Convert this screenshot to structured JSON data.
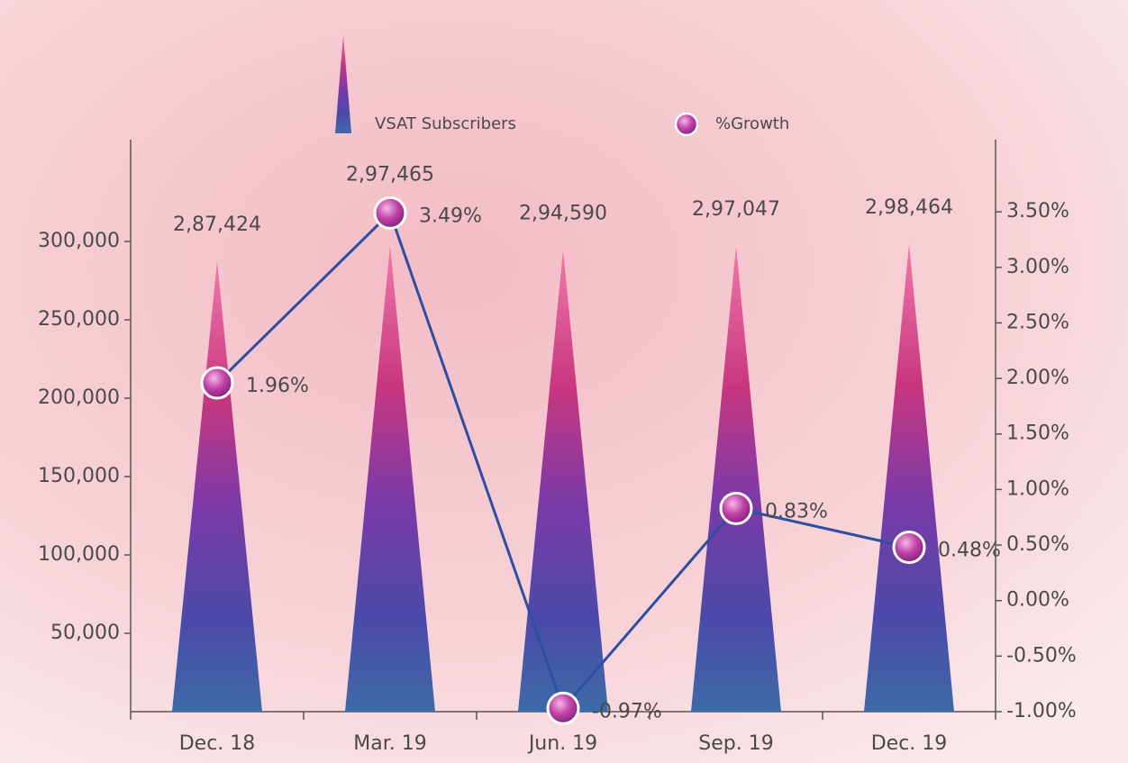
{
  "chart_data": {
    "type": "combo",
    "categories": [
      "Dec. 18",
      "Mar. 19",
      "Jun. 19",
      "Sep. 19",
      "Dec. 19"
    ],
    "series": [
      {
        "name": "VSAT Subscribers",
        "type": "bar",
        "color": "#7a3fb0",
        "values": [
          287424,
          297465,
          294590,
          297047,
          298464
        ],
        "value_labels": [
          "2,87,424",
          "2,97,465",
          "2,94,590",
          "2,97,047",
          "2,98,464"
        ]
      },
      {
        "name": "%Growth",
        "type": "line",
        "axis": "y2",
        "color": "#2e4fa0",
        "values": [
          1.96,
          3.49,
          -0.97,
          0.83,
          0.48
        ],
        "value_labels": [
          "1.96%",
          "3.49%",
          "-0.97%",
          "0.83%",
          "0.48%"
        ]
      }
    ],
    "ylim": [
      0,
      365000
    ],
    "yticks": [
      {
        "value": 50000,
        "label": "50,000"
      },
      {
        "value": 100000,
        "label": "100,000"
      },
      {
        "value": 150000,
        "label": "150,000"
      },
      {
        "value": 200000,
        "label": "200,000"
      },
      {
        "value": 250000,
        "label": "250,000"
      },
      {
        "value": 300000,
        "label": "300,000"
      }
    ],
    "y2lim": [
      -1,
      4.15
    ],
    "y2ticks": [
      {
        "value": -1,
        "label": "-1.00%"
      },
      {
        "value": -0.5,
        "label": "-0.50%"
      },
      {
        "value": 0,
        "label": "0.00%"
      },
      {
        "value": 0.5,
        "label": "0.50%"
      },
      {
        "value": 1,
        "label": "1.00%"
      },
      {
        "value": 1.5,
        "label": "1.50%"
      },
      {
        "value": 2,
        "label": "2.00%"
      },
      {
        "value": 2.5,
        "label": "2.50%"
      },
      {
        "value": 3,
        "label": "3.00%"
      },
      {
        "value": 3.5,
        "label": "3.50%"
      }
    ],
    "legend": "top"
  }
}
